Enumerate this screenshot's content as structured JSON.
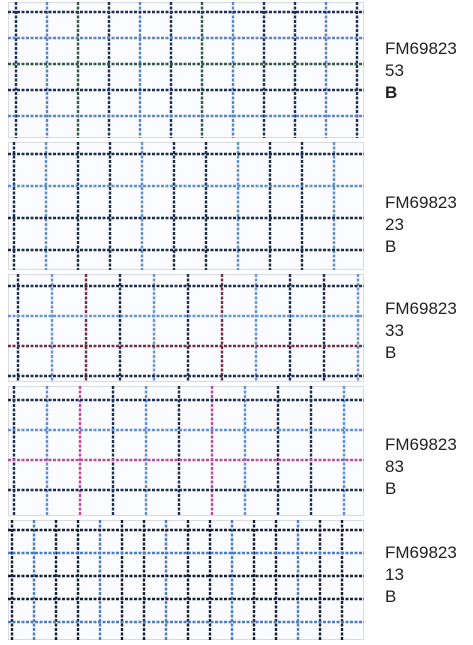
{
  "swatches": [
    {
      "code_line1": "FM69823",
      "code_line2": "53",
      "grade": "B",
      "grade_bold": true,
      "pattern": {
        "primary": "#1e2f55",
        "accent": "#5a85c8",
        "secondary": "#2e5a3e"
      }
    },
    {
      "code_line1": "FM69823",
      "code_line2": "23",
      "grade": "B",
      "grade_bold": false,
      "pattern": {
        "primary": "#1b2a4a",
        "accent": "#5d8fd6",
        "secondary": "#1b2a4a"
      }
    },
    {
      "code_line1": "FM69823",
      "code_line2": "33",
      "grade": "B",
      "grade_bold": false,
      "pattern": {
        "primary": "#1d2b4f",
        "accent": "#6a95d8",
        "secondary": "#7a2a3a"
      }
    },
    {
      "code_line1": "FM69823",
      "code_line2": "83",
      "grade": "B",
      "grade_bold": false,
      "pattern": {
        "primary": "#1c2c52",
        "accent": "#5f8fda",
        "secondary": "#c04a9a"
      }
    },
    {
      "code_line1": "FM69823",
      "code_line2": "13",
      "grade": "B",
      "grade_bold": false,
      "pattern": {
        "primary": "#161f36",
        "accent": "#4a7cc8",
        "secondary": "#161f36"
      }
    }
  ]
}
